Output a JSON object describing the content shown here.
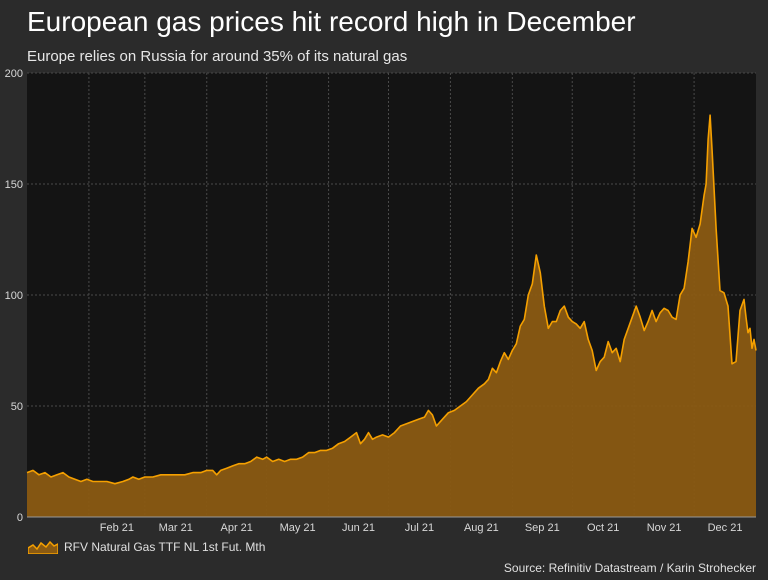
{
  "title": "European gas prices hit record high in December",
  "subtitle": "Europe relies on Russia for around 35% of its natural gas",
  "source": "Source: Refinitiv Datastream / Karin Strohecker",
  "colors": {
    "background": "#2b2b2b",
    "plot_background": "#141414",
    "grid": "#4a4a4a",
    "line": "#f5a000",
    "area": "#8a5a12"
  },
  "chart_data": {
    "type": "area",
    "series_name": "RFV Natural Gas TTF NL 1st Fut. Mth",
    "ylim": [
      0,
      200
    ],
    "yticks": [
      0,
      50,
      100,
      150,
      200
    ],
    "xlim": [
      0,
      365
    ],
    "xticks": [
      {
        "label": "Feb 21",
        "day": 31
      },
      {
        "label": "Mar 21",
        "day": 59
      },
      {
        "label": "Apr 21",
        "day": 90
      },
      {
        "label": "May 21",
        "day": 120
      },
      {
        "label": "Jun 21",
        "day": 151
      },
      {
        "label": "Jul 21",
        "day": 181
      },
      {
        "label": "Aug 21",
        "day": 212
      },
      {
        "label": "Sep 21",
        "day": 243
      },
      {
        "label": "Oct 21",
        "day": 273
      },
      {
        "label": "Nov 21",
        "day": 304
      },
      {
        "label": "Dec 21",
        "day": 334
      }
    ],
    "xlabel": "",
    "ylabel": "",
    "points": [
      [
        0,
        20
      ],
      [
        3,
        21
      ],
      [
        6,
        19
      ],
      [
        9,
        20
      ],
      [
        12,
        18
      ],
      [
        15,
        19
      ],
      [
        18,
        20
      ],
      [
        21,
        18
      ],
      [
        24,
        17
      ],
      [
        27,
        16
      ],
      [
        30,
        17
      ],
      [
        33,
        16
      ],
      [
        36,
        16
      ],
      [
        40,
        16
      ],
      [
        44,
        15
      ],
      [
        48,
        16
      ],
      [
        51,
        17
      ],
      [
        53,
        18
      ],
      [
        56,
        17
      ],
      [
        59,
        18
      ],
      [
        63,
        18
      ],
      [
        67,
        19
      ],
      [
        71,
        19
      ],
      [
        75,
        19
      ],
      [
        79,
        19
      ],
      [
        83,
        20
      ],
      [
        87,
        20
      ],
      [
        90,
        21
      ],
      [
        93,
        21
      ],
      [
        95,
        19
      ],
      [
        97,
        21
      ],
      [
        100,
        22
      ],
      [
        103,
        23
      ],
      [
        106,
        24
      ],
      [
        109,
        24
      ],
      [
        112,
        25
      ],
      [
        115,
        27
      ],
      [
        118,
        26
      ],
      [
        120,
        27
      ],
      [
        123,
        25
      ],
      [
        126,
        26
      ],
      [
        129,
        25
      ],
      [
        132,
        26
      ],
      [
        135,
        26
      ],
      [
        138,
        27
      ],
      [
        141,
        29
      ],
      [
        144,
        29
      ],
      [
        147,
        30
      ],
      [
        150,
        30
      ],
      [
        153,
        31
      ],
      [
        156,
        33
      ],
      [
        159,
        34
      ],
      [
        162,
        36
      ],
      [
        165,
        38
      ],
      [
        167,
        33
      ],
      [
        169,
        35
      ],
      [
        171,
        38
      ],
      [
        173,
        35
      ],
      [
        175,
        36
      ],
      [
        178,
        37
      ],
      [
        181,
        36
      ],
      [
        184,
        38
      ],
      [
        187,
        41
      ],
      [
        190,
        42
      ],
      [
        193,
        43
      ],
      [
        196,
        44
      ],
      [
        199,
        45
      ],
      [
        201,
        48
      ],
      [
        203,
        46
      ],
      [
        205,
        41
      ],
      [
        208,
        44
      ],
      [
        211,
        47
      ],
      [
        214,
        48
      ],
      [
        217,
        50
      ],
      [
        220,
        52
      ],
      [
        223,
        55
      ],
      [
        226,
        58
      ],
      [
        229,
        60
      ],
      [
        231,
        62
      ],
      [
        233,
        67
      ],
      [
        235,
        65
      ],
      [
        237,
        70
      ],
      [
        239,
        74
      ],
      [
        241,
        71
      ],
      [
        243,
        75
      ],
      [
        245,
        78
      ],
      [
        247,
        86
      ],
      [
        249,
        89
      ],
      [
        251,
        100
      ],
      [
        253,
        105
      ],
      [
        255,
        118
      ],
      [
        257,
        110
      ],
      [
        259,
        95
      ],
      [
        261,
        85
      ],
      [
        263,
        88
      ],
      [
        265,
        88
      ],
      [
        267,
        93
      ],
      [
        269,
        95
      ],
      [
        271,
        90
      ],
      [
        273,
        88
      ],
      [
        275,
        87
      ],
      [
        277,
        85
      ],
      [
        279,
        88
      ],
      [
        281,
        80
      ],
      [
        283,
        75
      ],
      [
        285,
        66
      ],
      [
        287,
        70
      ],
      [
        289,
        72
      ],
      [
        291,
        79
      ],
      [
        293,
        74
      ],
      [
        295,
        76
      ],
      [
        297,
        70
      ],
      [
        299,
        80
      ],
      [
        301,
        85
      ],
      [
        303,
        90
      ],
      [
        305,
        95
      ],
      [
        307,
        90
      ],
      [
        309,
        84
      ],
      [
        311,
        88
      ],
      [
        313,
        93
      ],
      [
        315,
        88
      ],
      [
        317,
        92
      ],
      [
        319,
        94
      ],
      [
        321,
        93
      ],
      [
        323,
        90
      ],
      [
        325,
        89
      ],
      [
        327,
        100
      ],
      [
        329,
        103
      ],
      [
        331,
        115
      ],
      [
        333,
        130
      ],
      [
        335,
        126
      ],
      [
        337,
        132
      ],
      [
        339,
        145
      ],
      [
        340,
        150
      ],
      [
        341,
        170
      ],
      [
        342,
        181
      ],
      [
        343,
        165
      ],
      [
        345,
        130
      ],
      [
        347,
        102
      ],
      [
        349,
        101
      ],
      [
        351,
        95
      ],
      [
        353,
        69
      ],
      [
        355,
        70
      ],
      [
        357,
        93
      ],
      [
        359,
        98
      ],
      [
        360,
        90
      ],
      [
        361,
        83
      ],
      [
        362,
        85
      ],
      [
        363,
        76
      ],
      [
        364,
        80
      ],
      [
        365,
        75
      ]
    ]
  }
}
